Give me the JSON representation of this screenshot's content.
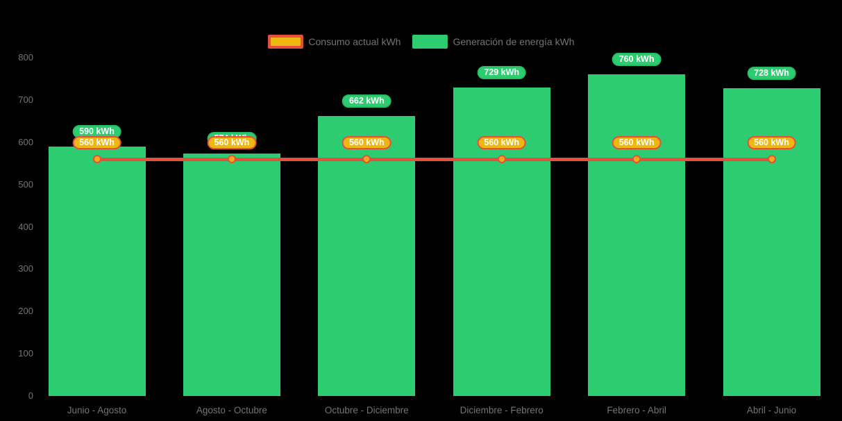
{
  "chart_data": {
    "type": "bar",
    "title": "",
    "categories": [
      "Junio - Agosto",
      "Agosto - Octubre",
      "Octubre - Diciembre",
      "Diciembre - Febrero",
      "Febrero - Abril",
      "Abril - Junio"
    ],
    "series": [
      {
        "name": "Generación de energía kWh",
        "type": "bar",
        "color": "#2ecc71",
        "values": [
          590,
          574,
          662,
          729,
          760,
          728
        ],
        "labels": [
          "590 kWh",
          "574 kWh",
          "662 kWh",
          "729 kWh",
          "760 kWh",
          "728 kWh"
        ]
      },
      {
        "name": "Consumo actual kWh",
        "type": "line",
        "color": "#e5503e",
        "point_color": "#f3ac15",
        "values": [
          560,
          560,
          560,
          560,
          560,
          560
        ],
        "labels": [
          "560 kWh",
          "560 kWh",
          "560 kWh",
          "560 kWh",
          "560 kWh",
          "560 kWh"
        ]
      }
    ],
    "ylim": [
      0,
      800
    ],
    "yticks": [
      0,
      100,
      200,
      300,
      400,
      500,
      600,
      700,
      800
    ],
    "xlabel": "",
    "ylabel": "",
    "grid": false,
    "legend_position": "top-center",
    "unit": "kWh"
  },
  "legend": {
    "consumo_label": "Consumo actual kWh",
    "generacion_label": "Generación de energía kWh"
  },
  "colors": {
    "background": "#000000",
    "bar_green": "#2ecc71",
    "line_red": "#e5503e",
    "badge_gold": "#eeb711",
    "badge_text": "#ffffff",
    "axis_text": "#747474"
  }
}
